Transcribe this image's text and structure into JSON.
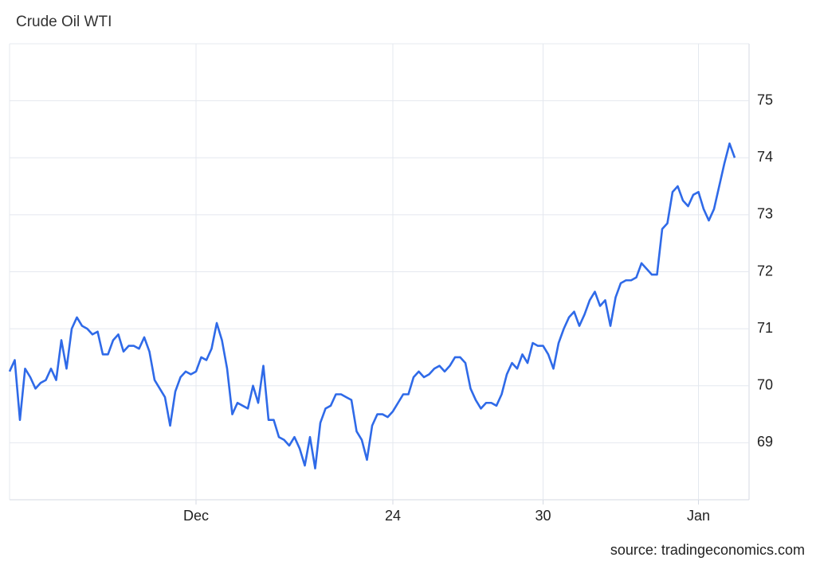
{
  "chart_data": {
    "type": "line",
    "title": "Crude Oil WTI",
    "source": "source: tradingeconomics.com",
    "categories": [
      null,
      null,
      null,
      null,
      null,
      null,
      null,
      null,
      null,
      null,
      null,
      null,
      null,
      null,
      null,
      null,
      null,
      null,
      null,
      null,
      null,
      null,
      null,
      null,
      null,
      null,
      null,
      null,
      null,
      null,
      null,
      null,
      null,
      null,
      null,
      null,
      "Dec",
      null,
      null,
      null,
      null,
      null,
      null,
      null,
      null,
      null,
      null,
      null,
      null,
      null,
      null,
      null,
      null,
      null,
      null,
      null,
      null,
      null,
      null,
      null,
      null,
      null,
      null,
      null,
      null,
      null,
      null,
      null,
      null,
      null,
      null,
      null,
      null,
      null,
      "24",
      null,
      null,
      null,
      null,
      null,
      null,
      null,
      null,
      null,
      null,
      null,
      null,
      null,
      null,
      null,
      null,
      null,
      null,
      null,
      null,
      null,
      null,
      null,
      null,
      null,
      null,
      null,
      null,
      "30",
      null,
      null,
      null,
      null,
      null,
      null,
      null,
      null,
      null,
      null,
      null,
      null,
      null,
      null,
      null,
      null,
      null,
      null,
      null,
      null,
      null,
      null,
      null,
      null,
      null,
      null,
      null,
      null,
      null,
      "Jan",
      null,
      null,
      null,
      null,
      null,
      null,
      null
    ],
    "values": [
      70.25,
      70.45,
      69.4,
      70.3,
      70.15,
      69.95,
      70.05,
      70.1,
      70.3,
      70.1,
      70.8,
      70.3,
      71.0,
      71.2,
      71.05,
      71.0,
      70.9,
      70.95,
      70.55,
      70.55,
      70.8,
      70.9,
      70.6,
      70.7,
      70.7,
      70.65,
      70.85,
      70.6,
      70.1,
      69.95,
      69.8,
      69.3,
      69.9,
      70.15,
      70.25,
      70.2,
      70.25,
      70.5,
      70.45,
      70.65,
      71.1,
      70.8,
      70.3,
      69.5,
      69.7,
      69.65,
      69.6,
      70.0,
      69.7,
      70.35,
      69.4,
      69.4,
      69.1,
      69.05,
      68.95,
      69.1,
      68.9,
      68.6,
      69.1,
      68.55,
      69.35,
      69.6,
      69.65,
      69.85,
      69.85,
      69.8,
      69.75,
      69.2,
      69.05,
      68.7,
      69.3,
      69.5,
      69.5,
      69.45,
      69.55,
      69.7,
      69.85,
      69.85,
      70.15,
      70.25,
      70.15,
      70.2,
      70.3,
      70.35,
      70.25,
      70.35,
      70.5,
      70.5,
      70.4,
      69.95,
      69.75,
      69.6,
      69.7,
      69.7,
      69.65,
      69.85,
      70.2,
      70.4,
      70.3,
      70.55,
      70.4,
      70.75,
      70.7,
      70.7,
      70.55,
      70.3,
      70.75,
      71.0,
      71.2,
      71.3,
      71.05,
      71.25,
      71.5,
      71.65,
      71.4,
      71.5,
      71.05,
      71.55,
      71.8,
      71.85,
      71.85,
      71.9,
      72.15,
      72.05,
      71.95,
      71.95,
      72.75,
      72.85,
      73.4,
      73.5,
      73.25,
      73.15,
      73.35,
      73.4,
      73.1,
      72.9,
      73.1,
      73.5,
      73.9,
      74.25,
      74.0
    ],
    "color": "#2f6ae8",
    "ylim": [
      68,
      76
    ],
    "yticks": [
      69,
      70,
      71,
      72,
      73,
      74,
      75
    ],
    "grid": true
  }
}
